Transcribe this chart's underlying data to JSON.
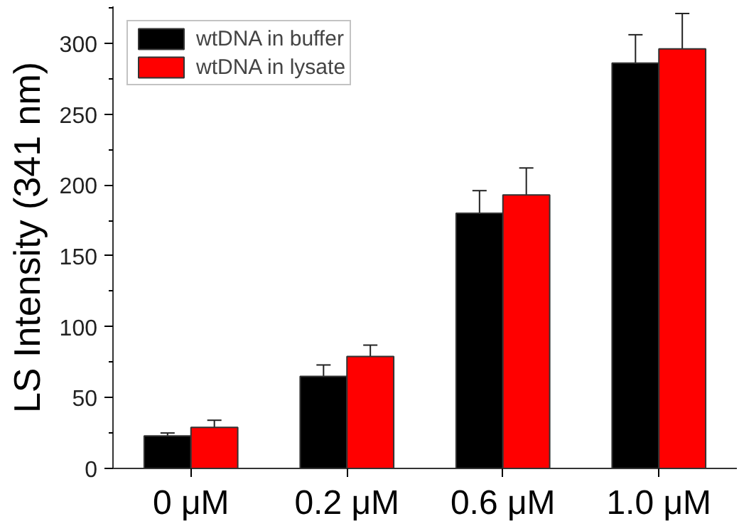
{
  "chart_data": {
    "type": "bar",
    "ylabel": "LS Intensity (341 nm)",
    "categories": [
      "0 μM",
      "0.2 μM",
      "0.6 μM",
      "1.0 μM"
    ],
    "series": [
      {
        "name": "wtDNA in buffer",
        "color": "#000000",
        "values": [
          23,
          65,
          180,
          286
        ],
        "errors": [
          2,
          8,
          16,
          20
        ]
      },
      {
        "name": "wtDNA in lysate",
        "color": "#ff0000",
        "values": [
          29,
          79,
          193,
          296
        ],
        "errors": [
          5,
          8,
          19,
          25
        ]
      }
    ],
    "ylim": [
      0,
      326
    ],
    "yticks": [
      0,
      50,
      100,
      150,
      200,
      250,
      300
    ],
    "grid": false,
    "legend": "top left"
  }
}
